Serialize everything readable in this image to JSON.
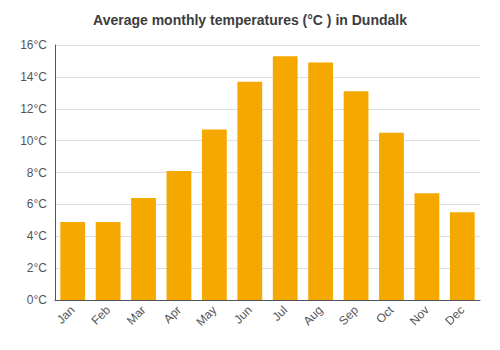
{
  "chart_data": {
    "type": "bar",
    "title": "Average monthly temperatures (°C ) in Dundalk",
    "categories": [
      "Jan",
      "Feb",
      "Mar",
      "Apr",
      "May",
      "Jun",
      "Jul",
      "Aug",
      "Sep",
      "Oct",
      "Nov",
      "Dec"
    ],
    "values": [
      4.9,
      4.9,
      6.4,
      8.1,
      10.7,
      13.7,
      15.3,
      14.9,
      13.1,
      10.5,
      6.7,
      5.5
    ],
    "color": "#F5A800",
    "ylim": [
      0,
      16
    ],
    "yticks": [
      {
        "value": 0,
        "label": "0°C"
      },
      {
        "value": 2,
        "label": "2°C"
      },
      {
        "value": 4,
        "label": "4°C"
      },
      {
        "value": 6,
        "label": "6°C"
      },
      {
        "value": 8,
        "label": "8°C"
      },
      {
        "value": 10,
        "label": "10°C"
      },
      {
        "value": 12,
        "label": "12°C"
      },
      {
        "value": 14,
        "label": "14°C"
      },
      {
        "value": 16,
        "label": "16°C"
      }
    ],
    "grid": true
  }
}
